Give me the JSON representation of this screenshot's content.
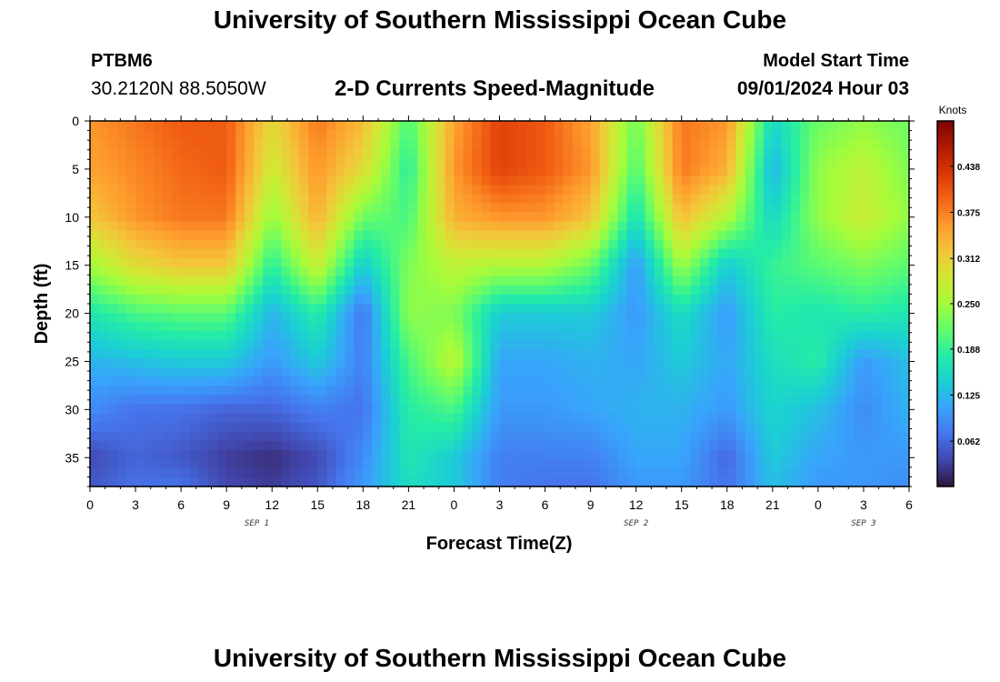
{
  "header": {
    "title": "University of Southern Mississippi Ocean Cube",
    "station": "PTBM6",
    "coordinates": "30.2120N  88.5050W",
    "subtitle": "2-D Currents Speed-Magnitude",
    "model_start_label": "Model Start Time",
    "model_start_value": "09/01/2024 Hour 03"
  },
  "footer": {
    "title": "University of Southern Mississippi Ocean Cube"
  },
  "chart_data": {
    "type": "heatmap",
    "title": "2-D Currents Speed-Magnitude",
    "xlabel": "Forecast Time(Z)",
    "ylabel": "Depth (ft)",
    "x_ticks": [
      "0",
      "3",
      "6",
      "9",
      "12",
      "15",
      "18",
      "21",
      "0",
      "3",
      "6",
      "9",
      "12",
      "15",
      "18",
      "21",
      "0",
      "3",
      "6"
    ],
    "x_tick_hours": [
      0,
      3,
      6,
      9,
      12,
      15,
      18,
      21,
      24,
      27,
      30,
      33,
      36,
      39,
      42,
      45,
      48,
      51,
      54
    ],
    "date_labels": [
      {
        "label": "SEP 1",
        "hour": 11
      },
      {
        "label": "SEP 2",
        "hour": 36
      },
      {
        "label": "SEP 3",
        "hour": 51
      }
    ],
    "xlim_hours": [
      0,
      54
    ],
    "y_ticks": [
      "0",
      "5",
      "10",
      "15",
      "20",
      "25",
      "30",
      "35"
    ],
    "y_tick_values": [
      0,
      5,
      10,
      15,
      20,
      25,
      30,
      35
    ],
    "ylim_ft": [
      0,
      38
    ],
    "y_inverted": true,
    "colorbar": {
      "unit": "Knots",
      "ticks": [
        0.062,
        0.125,
        0.188,
        0.25,
        0.312,
        0.375,
        0.438
      ],
      "tick_labels": [
        "0.062",
        "0.125",
        "0.188",
        "0.250",
        "0.312",
        "0.375",
        "0.438"
      ],
      "range": [
        0.0,
        0.5
      ],
      "colormap": [
        "#30123b",
        "#4145ab",
        "#4675ed",
        "#39a2fc",
        "#1bcfd4",
        "#24eca6",
        "#61fc6c",
        "#a4fc3b",
        "#d1e834",
        "#f3c63a",
        "#fe9b2d",
        "#f36315",
        "#d93806",
        "#b11901",
        "#7a0403"
      ]
    },
    "hours": [
      0,
      3,
      6,
      9,
      12,
      15,
      18,
      21,
      24,
      27,
      30,
      33,
      36,
      39,
      42,
      45,
      48,
      51,
      54
    ],
    "depths_ft": [
      0,
      5,
      10,
      15,
      20,
      25,
      30,
      35,
      38
    ],
    "values": [
      [
        0.36,
        0.38,
        0.4,
        0.4,
        0.3,
        0.38,
        0.33,
        0.2,
        0.35,
        0.42,
        0.4,
        0.35,
        0.22,
        0.38,
        0.36,
        0.15,
        0.22,
        0.24,
        0.22
      ],
      [
        0.35,
        0.37,
        0.39,
        0.4,
        0.28,
        0.36,
        0.3,
        0.18,
        0.36,
        0.42,
        0.4,
        0.36,
        0.2,
        0.38,
        0.34,
        0.12,
        0.24,
        0.27,
        0.23
      ],
      [
        0.32,
        0.36,
        0.38,
        0.38,
        0.24,
        0.34,
        0.22,
        0.2,
        0.34,
        0.36,
        0.36,
        0.32,
        0.16,
        0.33,
        0.26,
        0.15,
        0.24,
        0.28,
        0.24
      ],
      [
        0.25,
        0.3,
        0.32,
        0.32,
        0.18,
        0.28,
        0.14,
        0.23,
        0.27,
        0.26,
        0.26,
        0.22,
        0.1,
        0.25,
        0.14,
        0.19,
        0.21,
        0.23,
        0.21
      ],
      [
        0.17,
        0.2,
        0.21,
        0.21,
        0.12,
        0.18,
        0.07,
        0.24,
        0.23,
        0.14,
        0.14,
        0.14,
        0.1,
        0.16,
        0.1,
        0.18,
        0.17,
        0.18,
        0.17
      ],
      [
        0.12,
        0.13,
        0.14,
        0.14,
        0.1,
        0.14,
        0.08,
        0.2,
        0.27,
        0.11,
        0.11,
        0.12,
        0.11,
        0.14,
        0.11,
        0.16,
        0.18,
        0.1,
        0.13
      ],
      [
        0.09,
        0.07,
        0.07,
        0.06,
        0.06,
        0.08,
        0.07,
        0.18,
        0.2,
        0.1,
        0.1,
        0.11,
        0.12,
        0.12,
        0.1,
        0.15,
        0.13,
        0.09,
        0.12
      ],
      [
        0.04,
        0.06,
        0.05,
        0.03,
        0.02,
        0.04,
        0.09,
        0.17,
        0.14,
        0.08,
        0.08,
        0.08,
        0.11,
        0.11,
        0.06,
        0.14,
        0.11,
        0.1,
        0.1
      ],
      [
        0.05,
        0.07,
        0.07,
        0.04,
        0.03,
        0.05,
        0.1,
        0.16,
        0.14,
        0.08,
        0.07,
        0.07,
        0.1,
        0.1,
        0.07,
        0.13,
        0.1,
        0.1,
        0.09
      ]
    ]
  }
}
